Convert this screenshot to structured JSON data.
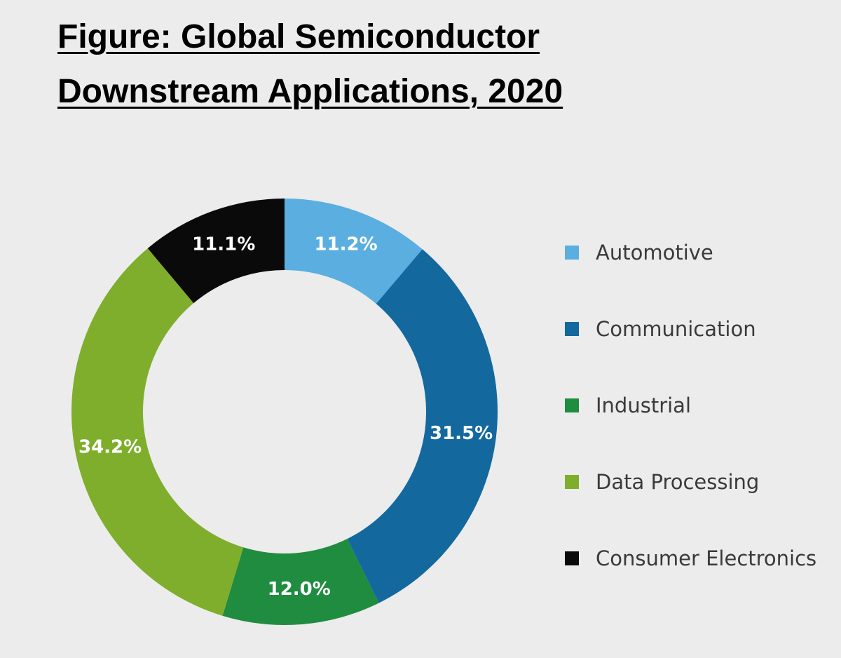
{
  "title": {
    "line1": "Figure: Global Semiconductor",
    "line2": "Downstream Applications, 2020"
  },
  "chart_data": {
    "type": "pie",
    "variant": "donut",
    "title": "Figure: Global Semiconductor Downstream Applications, 2020",
    "legend_position": "right",
    "slices": [
      {
        "name": "Automotive",
        "value": 11.2,
        "label": "11.2%",
        "color": "#5aafe0"
      },
      {
        "name": "Communication",
        "value": 31.5,
        "label": "31.5%",
        "color": "#13689e"
      },
      {
        "name": "Industrial",
        "value": 12.0,
        "label": "12.0%",
        "color": "#1f8c3f"
      },
      {
        "name": "Data Processing",
        "value": 34.2,
        "label": "34.2%",
        "color": "#7fae2c"
      },
      {
        "name": "Consumer Electronics",
        "value": 11.1,
        "label": "11.1%",
        "color": "#0a0a0a"
      }
    ]
  }
}
